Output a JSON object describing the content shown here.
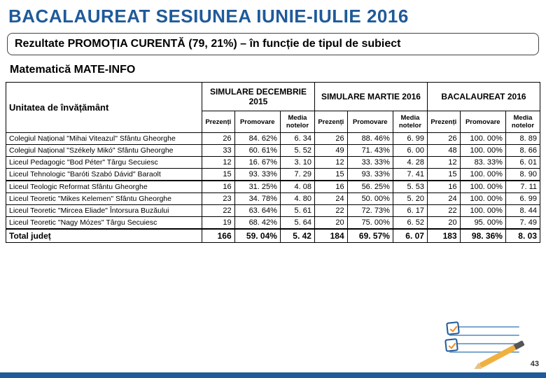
{
  "title": "BACALAUREAT SESIUNEA IUNIE-IULIE 2016",
  "subtitle": "Rezultate PROMOȚIA CURENTĂ (79, 21%)  – în funcție de tipul de subiect",
  "section": "Matematică MATE-INFO",
  "page_number": "43",
  "table": {
    "unit_header": "Unitatea de învățământ",
    "groups": [
      "SIMULARE DECEMBRIE 2015",
      "SIMULARE MARTIE 2016",
      "BACALAUREAT 2016"
    ],
    "sub_headers": [
      "Prezenți",
      "Promovare",
      "Media notelor"
    ],
    "rows": [
      {
        "school": "Colegiul Național \"Mihai Viteazul\" Sfântu Gheorghe",
        "d": [
          "26",
          "84. 62%",
          "6. 34",
          "26",
          "88. 46%",
          "6. 99",
          "26",
          "100. 00%",
          "8. 89"
        ]
      },
      {
        "school": "Colegiul Național \"Székely Mikó\" Sfântu Gheorghe",
        "d": [
          "33",
          "60. 61%",
          "5. 52",
          "49",
          "71. 43%",
          "6. 00",
          "48",
          "100. 00%",
          "8. 66"
        ]
      },
      {
        "school": "Liceul Pedagogic \"Bod Péter\" Târgu Secuiesc",
        "d": [
          "12",
          "16. 67%",
          "3. 10",
          "12",
          "33. 33%",
          "4. 28",
          "12",
          "83. 33%",
          "6. 01"
        ]
      },
      {
        "school": "Liceul Tehnologic \"Baróti Szabó Dávid\" Baraolt",
        "d": [
          "15",
          "93. 33%",
          "7. 29",
          "15",
          "93. 33%",
          "7. 41",
          "15",
          "100. 00%",
          "8. 90"
        ]
      },
      {
        "school": "Liceul Teologic Reformat Sfântu Gheorghe",
        "d": [
          "16",
          "31. 25%",
          "4. 08",
          "16",
          "56. 25%",
          "5. 53",
          "16",
          "100. 00%",
          "7. 11"
        ],
        "thick": true
      },
      {
        "school": "Liceul Teoretic \"Mikes Kelemen\" Sfântu Gheorghe",
        "d": [
          "23",
          "34. 78%",
          "4. 80",
          "24",
          "50. 00%",
          "5. 20",
          "24",
          "100. 00%",
          "6. 99"
        ]
      },
      {
        "school": "Liceul Teoretic \"Mircea Eliade\" Întorsura Buzăului",
        "d": [
          "22",
          "63. 64%",
          "5. 61",
          "22",
          "72. 73%",
          "6. 17",
          "22",
          "100. 00%",
          "8. 44"
        ]
      },
      {
        "school": "Liceul Teoretic \"Nagy Mózes\" Târgu Secuiesc",
        "d": [
          "19",
          "68. 42%",
          "5. 64",
          "20",
          "75. 00%",
          "6. 52",
          "20",
          "95. 00%",
          "7. 49"
        ]
      }
    ],
    "total": {
      "school": "Total județ",
      "d": [
        "166",
        "59. 04%",
        "5. 42",
        "184",
        "69. 57%",
        "6. 07",
        "183",
        "98. 36%",
        "8. 03"
      ]
    }
  },
  "colors": {
    "accent": "#1f5a9a",
    "orange": "#f08c1a"
  }
}
